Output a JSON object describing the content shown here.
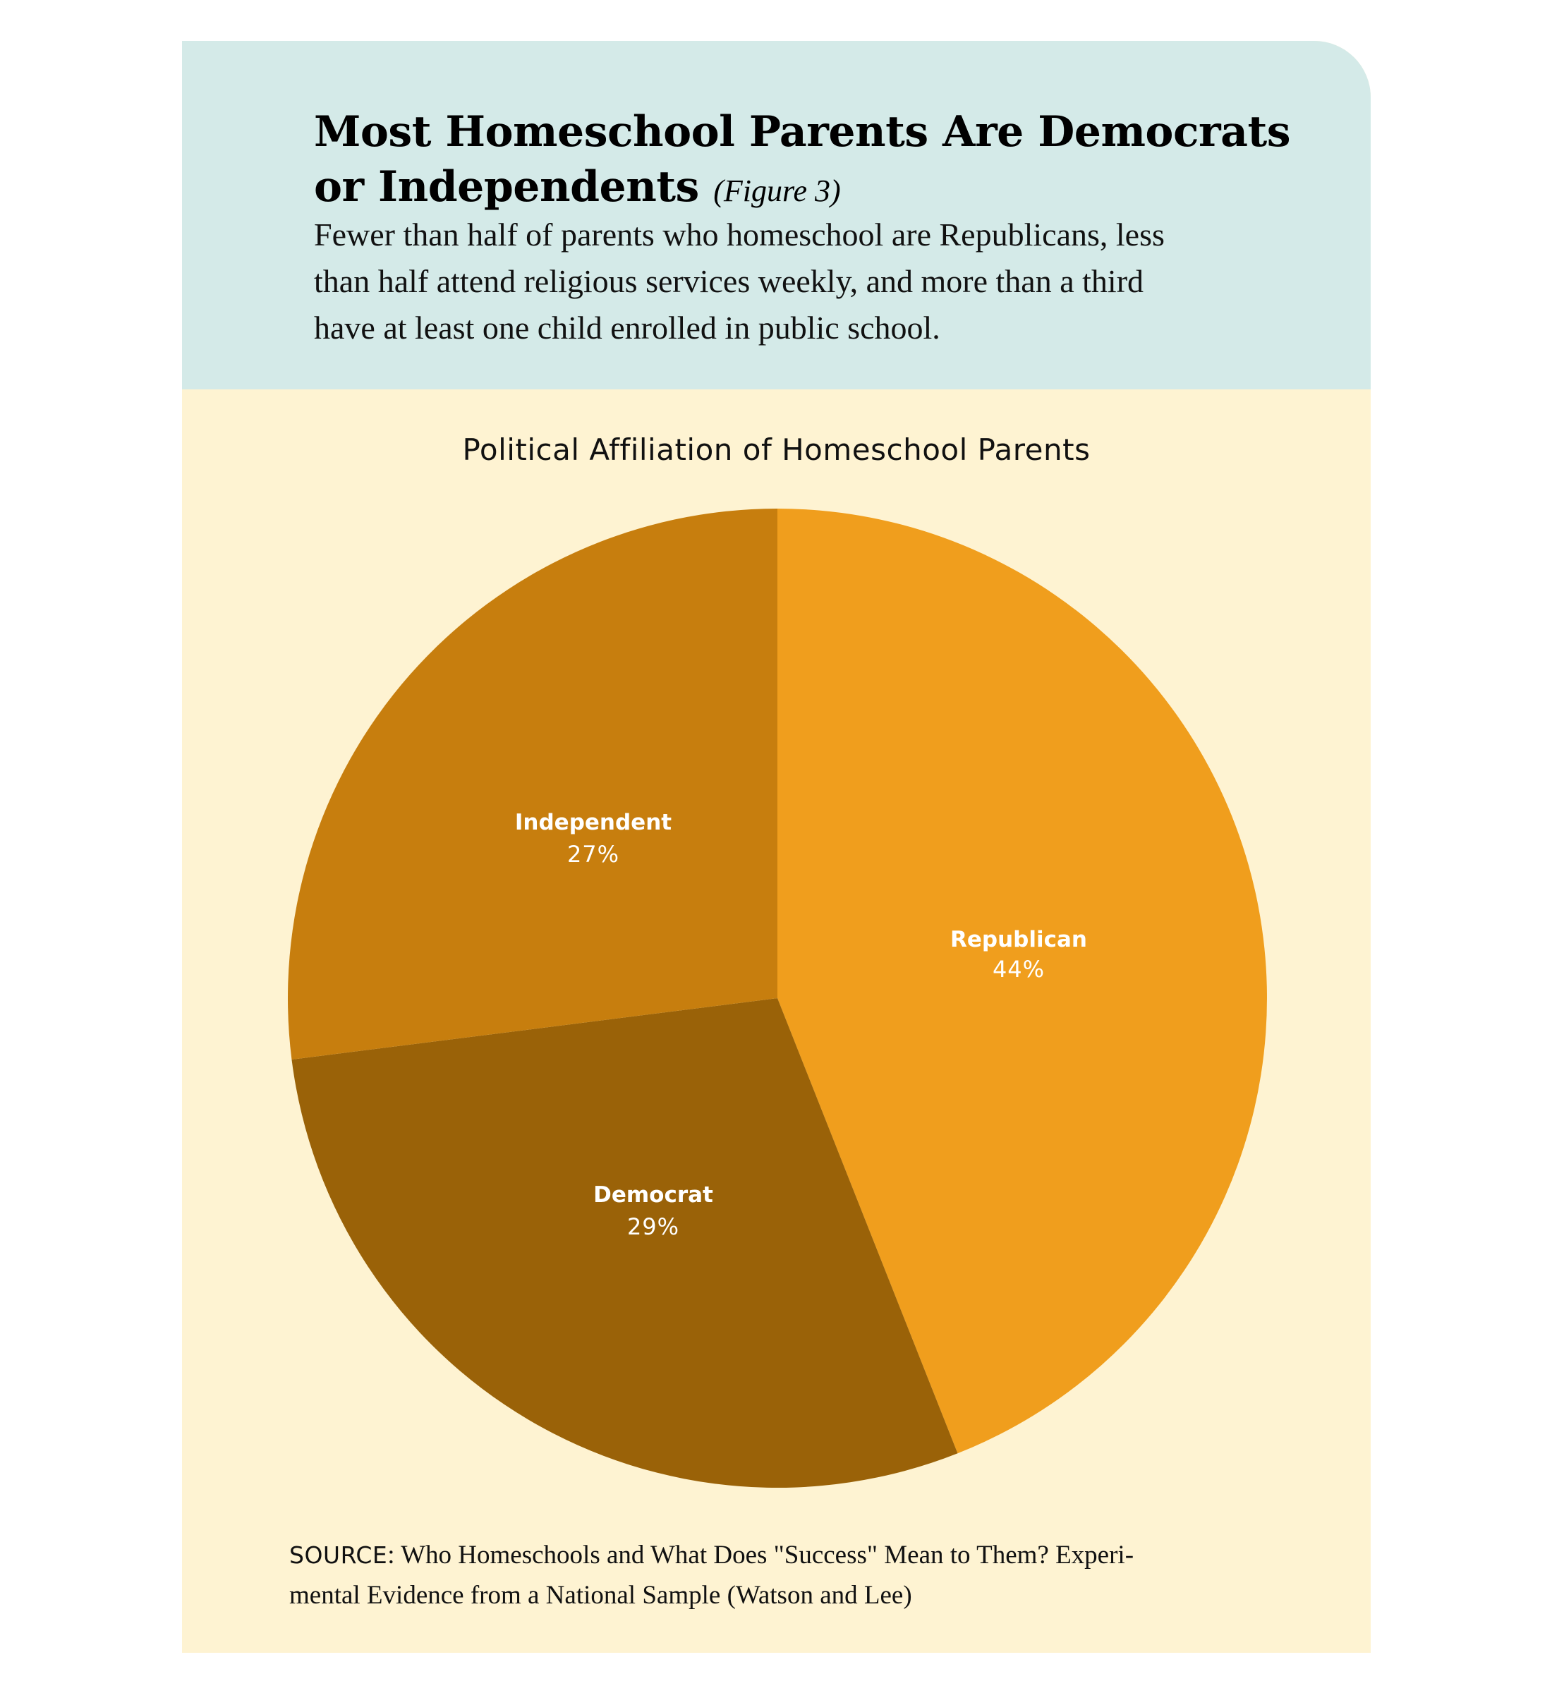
{
  "header": {
    "title_line1": "Most Homeschool Parents Are Democrats",
    "title_line2": "or Independents",
    "figure_ref": "(Figure 3)",
    "subtitle": "Fewer than half of parents who homeschool are Republicans, less than half attend religious services weekly, and more than a third have at least one child enrolled in public school.",
    "subtitle_lines": [
      "Fewer than half of parents who homeschool are Republicans, less",
      "than half attend religious services weekly, and more than a third",
      "have at least one child enrolled in public school."
    ]
  },
  "colors": {
    "header_bg": "#D4EAE8",
    "panel_bg": "#FEF3D2",
    "republican": "#F09E1D",
    "independent": "#C77E0E",
    "democrat": "#9A6208",
    "label_text": "#FFFFFF"
  },
  "chart_data": {
    "type": "pie",
    "title": "Political Affiliation of Homeschool Parents",
    "categories": [
      "Republican",
      "Democrat",
      "Independent"
    ],
    "values": [
      44,
      29,
      27
    ],
    "labels": [
      "44%",
      "29%",
      "27%"
    ],
    "start_angle_deg": 0,
    "direction": "clockwise",
    "legend": "none (labels inside slices)",
    "unit": "%"
  },
  "source": {
    "label": "SOURCE",
    "text_line1": ": Who Homeschools and What Does \"Success\" Mean to Them? Experi-",
    "text_line2": "mental Evidence from a National Sample (Watson and Lee)"
  }
}
